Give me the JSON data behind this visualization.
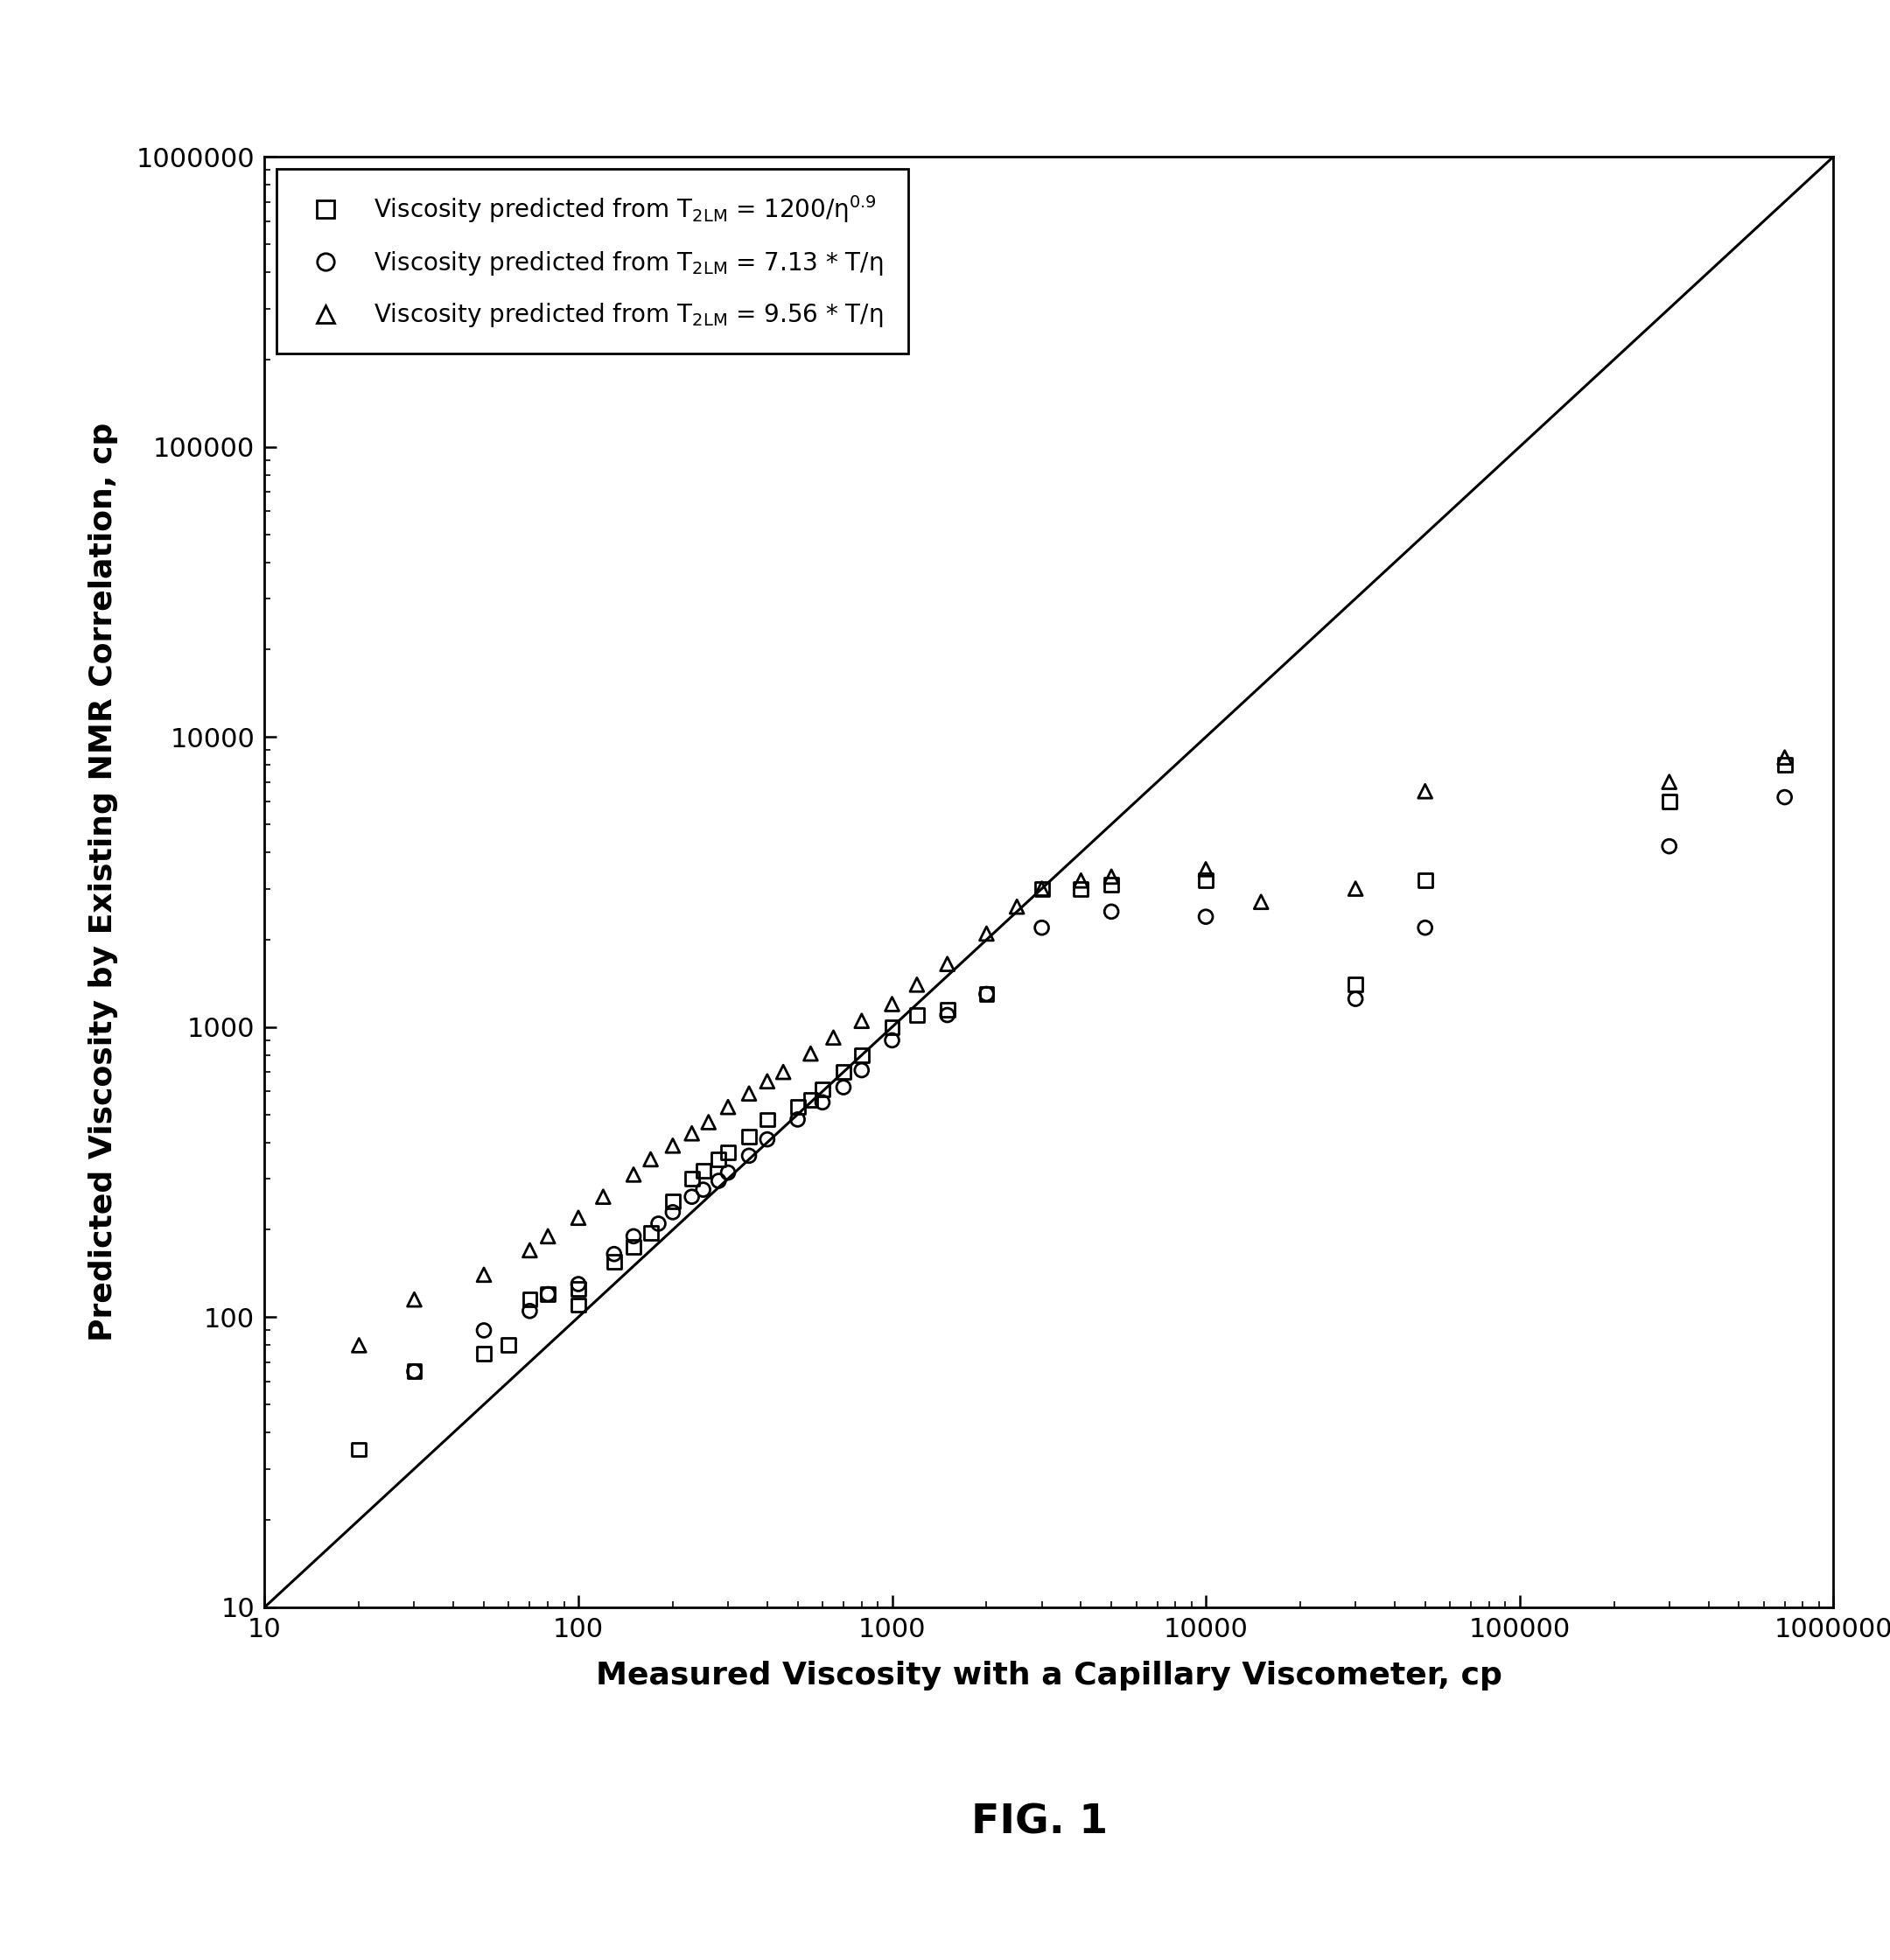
{
  "title": "FIG. 1",
  "xlabel": "Measured Viscosity with a Capillary Viscometer, cp",
  "ylabel": "Predicted Viscosity by Existing NMR Correlation, cp",
  "xlim": [
    10,
    1000000
  ],
  "ylim": [
    10,
    1000000
  ],
  "squares_x": [
    20,
    30,
    50,
    60,
    70,
    80,
    100,
    100,
    130,
    150,
    170,
    200,
    230,
    250,
    280,
    300,
    350,
    400,
    500,
    550,
    600,
    700,
    800,
    1000,
    1200,
    1500,
    2000,
    3000,
    4000,
    5000,
    10000,
    30000,
    50000,
    300000,
    700000
  ],
  "squares_y": [
    35,
    65,
    75,
    80,
    115,
    120,
    110,
    125,
    155,
    175,
    195,
    250,
    300,
    320,
    350,
    370,
    420,
    480,
    530,
    560,
    610,
    700,
    800,
    1000,
    1100,
    1150,
    1300,
    3000,
    3000,
    3100,
    3200,
    1400,
    3200,
    6000,
    8000
  ],
  "circles_x": [
    30,
    50,
    70,
    80,
    100,
    130,
    150,
    180,
    200,
    230,
    250,
    280,
    300,
    350,
    400,
    500,
    600,
    700,
    800,
    1000,
    1500,
    2000,
    3000,
    5000,
    10000,
    30000,
    50000,
    300000,
    700000
  ],
  "circles_y": [
    65,
    90,
    105,
    120,
    130,
    165,
    190,
    210,
    230,
    260,
    275,
    295,
    315,
    360,
    410,
    480,
    550,
    620,
    710,
    900,
    1100,
    1300,
    2200,
    2500,
    2400,
    1250,
    2200,
    4200,
    6200
  ],
  "triangles_x": [
    20,
    30,
    50,
    70,
    80,
    100,
    120,
    150,
    170,
    200,
    230,
    260,
    300,
    350,
    400,
    450,
    550,
    650,
    800,
    1000,
    1200,
    1500,
    2000,
    2500,
    3000,
    4000,
    5000,
    10000,
    15000,
    30000,
    50000,
    300000,
    700000
  ],
  "triangles_y": [
    80,
    115,
    140,
    170,
    190,
    220,
    260,
    310,
    350,
    390,
    430,
    470,
    530,
    590,
    650,
    700,
    810,
    920,
    1050,
    1200,
    1400,
    1650,
    2100,
    2600,
    3000,
    3200,
    3300,
    3500,
    2700,
    3000,
    6500,
    7000,
    8500
  ]
}
